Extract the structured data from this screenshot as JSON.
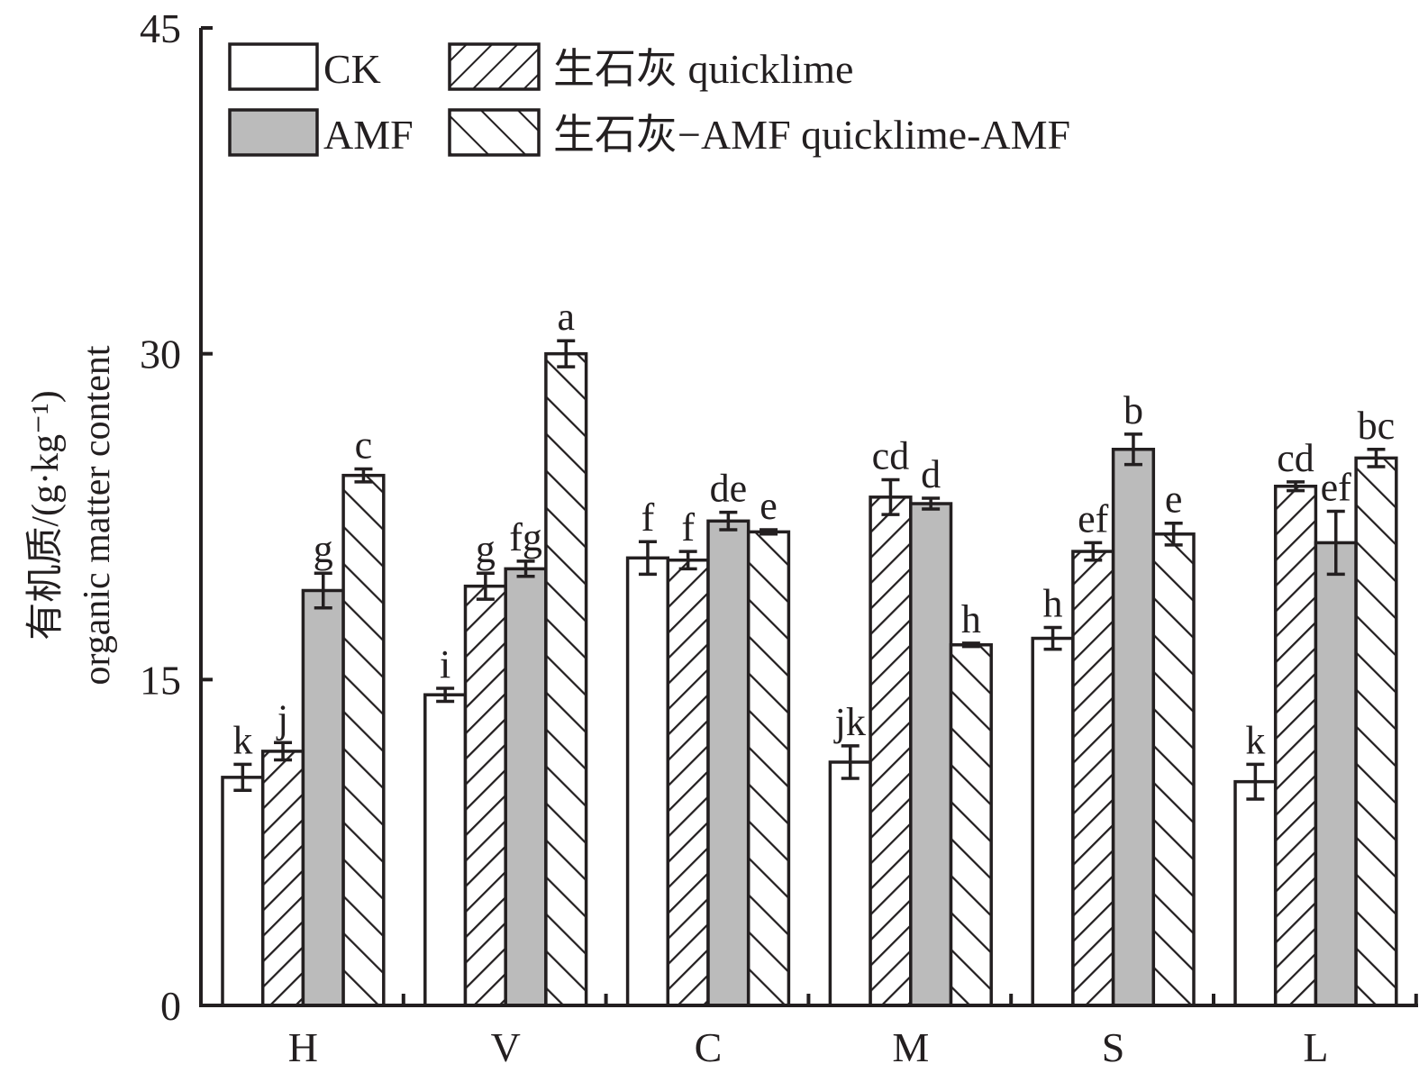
{
  "chart_data": {
    "type": "bar",
    "title": "",
    "xlabel": "",
    "ylabel_line1": "有机质/(g·kg⁻¹)",
    "ylabel_line2": "organic matter content",
    "ylim": [
      0,
      45
    ],
    "yticks": [
      0,
      15,
      30,
      45
    ],
    "ytick_labels": [
      "0",
      "15",
      "30",
      "45"
    ],
    "grid": false,
    "legend_position": "top-left",
    "categories": [
      "H",
      "V",
      "C",
      "M",
      "S",
      "L"
    ],
    "series": [
      {
        "name": "CK",
        "pattern": "none",
        "fill": "#ffffff",
        "values": [
          10.5,
          14.3,
          20.6,
          11.2,
          16.9,
          10.3
        ],
        "errors": [
          0.6,
          0.3,
          0.75,
          0.75,
          0.5,
          0.8
        ],
        "letters": [
          "k",
          "i",
          "f",
          "jk",
          "h",
          "k"
        ]
      },
      {
        "name": "生石灰 quicklime",
        "pattern": "forward-hatch",
        "fill": "#ffffff",
        "values": [
          11.7,
          19.3,
          20.5,
          23.4,
          20.9,
          23.9
        ],
        "errors": [
          0.4,
          0.6,
          0.4,
          0.8,
          0.4,
          0.2
        ],
        "letters": [
          "j",
          "g",
          "f",
          "cd",
          "ef",
          "cd"
        ]
      },
      {
        "name": "AMF",
        "pattern": "solid",
        "fill": "#bbbbbb",
        "values": [
          19.1,
          20.1,
          22.3,
          23.1,
          25.6,
          21.3
        ],
        "errors": [
          0.8,
          0.35,
          0.4,
          0.25,
          0.7,
          1.45
        ],
        "letters": [
          "g",
          "fg",
          "de",
          "d",
          "b",
          "ef"
        ]
      },
      {
        "name": "生石灰−AMF quicklime-AMF",
        "pattern": "back-hatch",
        "fill": "#ffffff",
        "values": [
          24.4,
          30.0,
          21.8,
          16.6,
          21.7,
          25.2
        ],
        "errors": [
          0.3,
          0.6,
          0.1,
          0.08,
          0.5,
          0.4
        ],
        "letters": [
          "c",
          "a",
          "e",
          "h",
          "e",
          "bc"
        ]
      }
    ]
  },
  "legend": {
    "items": [
      "CK",
      "生石灰 quicklime",
      "AMF",
      "生石灰−AMF quicklime-AMF"
    ]
  },
  "colors": {
    "ink": "#231f20",
    "amf_fill": "#bbbbbb",
    "background": "#ffffff"
  }
}
